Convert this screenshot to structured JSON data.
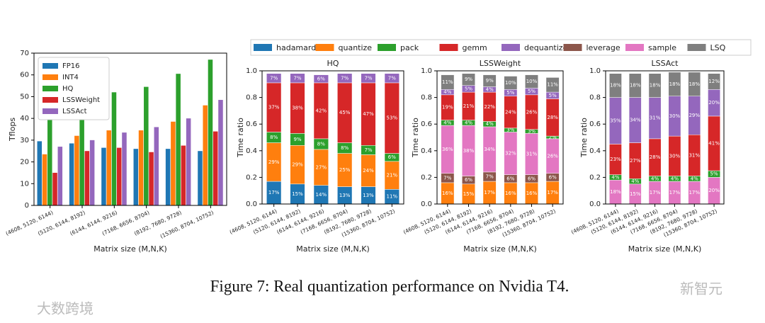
{
  "chart_data": [
    {
      "type": "bar",
      "ylabel": "Tflops",
      "xlabel": "Matrix size (M,N,K)",
      "categories": [
        "(4608, 5120, 6144)",
        "(5120, 6144, 8192)",
        "(6144, 6144, 9216)",
        "(7168, 6656, 8704)",
        "(8192, 7680, 9728)",
        "(15360, 8704, 10752)"
      ],
      "ylim": [
        0,
        70
      ],
      "yticks": [
        0,
        10,
        20,
        30,
        40,
        50,
        60,
        70
      ],
      "legend": "upper left",
      "series": [
        {
          "name": "FP16",
          "color": "#1f77b4",
          "values": [
            29.5,
            28.5,
            26.5,
            26,
            26,
            25
          ]
        },
        {
          "name": "INT4",
          "color": "#ff7f0e",
          "values": [
            23.5,
            32,
            34.5,
            34.5,
            38.5,
            46
          ]
        },
        {
          "name": "HQ",
          "color": "#2ca02c",
          "values": [
            43,
            49,
            52,
            54.5,
            60.5,
            67
          ]
        },
        {
          "name": "LSSWeight",
          "color": "#d62728",
          "values": [
            15,
            25,
            26.5,
            24.5,
            27.5,
            34
          ]
        },
        {
          "name": "LSSAct",
          "color": "#9467bd",
          "values": [
            27,
            30,
            33.5,
            36,
            40,
            48.5
          ]
        }
      ]
    },
    {
      "type": "stacked_bar",
      "title": "HQ",
      "ylabel": "Time ratio",
      "xlabel": "Matrix size (M,N,K)",
      "categories": [
        "(4608, 5120, 6144)",
        "(5120, 6144, 8192)",
        "(6144, 6144, 9216)",
        "(7168, 6656, 8704)",
        "(8192, 7680, 9728)",
        "(15360, 8704, 10752)"
      ],
      "ylim": [
        0,
        1
      ],
      "yticks": [
        {
          "value": 0,
          "label": "0.0"
        },
        0.2,
        0.4,
        0.6,
        0.8,
        {
          "value": 1,
          "label": "1.0"
        }
      ],
      "series": [
        {
          "name": "hadamard",
          "color": "#1f77b4",
          "values": [
            0.17,
            0.15,
            0.14,
            0.13,
            0.13,
            0.11
          ],
          "value_labels": [
            "17%",
            "15%",
            "14%",
            "13%",
            "13%",
            "11%"
          ]
        },
        {
          "name": "quantize",
          "color": "#ff7f0e",
          "values": [
            0.29,
            0.29,
            0.27,
            0.25,
            0.24,
            0.21
          ],
          "value_labels": [
            "29%",
            "29%",
            "27%",
            "25%",
            "24%",
            "21%"
          ]
        },
        {
          "name": "pack",
          "color": "#2ca02c",
          "values": [
            0.08,
            0.09,
            0.08,
            0.08,
            0.07,
            0.06
          ],
          "value_labels": [
            "8%",
            "9%",
            "8%",
            "8%",
            "7%",
            "6%"
          ]
        },
        {
          "name": "gemm",
          "color": "#d62728",
          "values": [
            0.37,
            0.38,
            0.42,
            0.45,
            0.47,
            0.53
          ],
          "value_labels": [
            "37%",
            "38%",
            "42%",
            "45%",
            "47%",
            "53%"
          ]
        },
        {
          "name": "dequantize",
          "color": "#9467bd",
          "values": [
            0.07,
            0.07,
            0.06,
            0.07,
            0.07,
            0.07
          ],
          "value_labels": [
            "7%",
            "7%",
            "6%",
            "7%",
            "7%",
            "7%"
          ]
        }
      ]
    },
    {
      "type": "stacked_bar",
      "title": "LSSWeight",
      "ylabel": "Time ratio",
      "xlabel": "Matrix size (M,N,K)",
      "categories": [
        "(4608, 5120, 6144)",
        "(5120, 6144, 8192)",
        "(6144, 6144, 9216)",
        "(7168, 6656, 8704)",
        "(8192, 7680, 9728)",
        "(15360, 8704, 10752)"
      ],
      "ylim": [
        0,
        1
      ],
      "yticks": [
        {
          "value": 0,
          "label": "0.0"
        },
        0.2,
        0.4,
        0.6,
        0.8,
        {
          "value": 1,
          "label": "1.0"
        }
      ],
      "series": [
        {
          "name": "quantize",
          "color": "#ff7f0e",
          "values": [
            0.16,
            0.15,
            0.17,
            0.16,
            0.16,
            0.17
          ],
          "value_labels": [
            "16%",
            "15%",
            "17%",
            "16%",
            "16%",
            "17%"
          ]
        },
        {
          "name": "leverage",
          "color": "#8c564b",
          "values": [
            0.07,
            0.06,
            0.07,
            0.06,
            0.06,
            0.06
          ],
          "value_labels": [
            "7%",
            "6%",
            "7%",
            "6%",
            "6%",
            "6%"
          ]
        },
        {
          "name": "sample",
          "color": "#e377c2",
          "values": [
            0.36,
            0.38,
            0.34,
            0.32,
            0.31,
            0.26
          ],
          "value_labels": [
            "36%",
            "38%",
            "34%",
            "32%",
            "31%",
            "26%"
          ]
        },
        {
          "name": "pack",
          "color": "#2ca02c",
          "values": [
            0.04,
            0.04,
            0.04,
            0.03,
            0.03,
            0.02
          ],
          "value_labels": [
            "4%",
            "4%",
            "4%",
            "3%",
            "3%",
            "2%"
          ]
        },
        {
          "name": "gemm",
          "color": "#d62728",
          "values": [
            0.19,
            0.21,
            0.22,
            0.24,
            0.26,
            0.28
          ],
          "value_labels": [
            "19%",
            "21%",
            "22%",
            "24%",
            "26%",
            "28%"
          ]
        },
        {
          "name": "dequantize",
          "color": "#9467bd",
          "values": [
            0.04,
            0.05,
            0.04,
            0.05,
            0.05,
            0.05
          ],
          "value_labels": [
            "4%",
            "5%",
            "4%",
            "5%",
            "5%",
            "5%"
          ]
        },
        {
          "name": "LSQ",
          "color": "#7f7f7f",
          "values": [
            0.11,
            0.09,
            0.09,
            0.1,
            0.1,
            0.11
          ],
          "value_labels": [
            "11%",
            "9%",
            "9%",
            "10%",
            "10%",
            "11%"
          ]
        }
      ]
    },
    {
      "type": "stacked_bar",
      "title": "LSSAct",
      "ylabel": "Time ratio",
      "xlabel": "Matrix size (M,N,K)",
      "categories": [
        "(4608, 5120, 6144)",
        "(5120, 6144, 8192)",
        "(6144, 6144, 9216)",
        "(7168, 6656, 8704)",
        "(8192, 7680, 9728)",
        "(15360, 8704, 10752)"
      ],
      "ylim": [
        0,
        1
      ],
      "yticks": [
        {
          "value": 0,
          "label": "0.0"
        },
        0.2,
        0.4,
        0.6,
        0.8,
        {
          "value": 1,
          "label": "1.0"
        }
      ],
      "series": [
        {
          "name": "sample",
          "color": "#e377c2",
          "values": [
            0.18,
            0.15,
            0.17,
            0.17,
            0.17,
            0.2
          ],
          "value_labels": [
            "18%",
            "15%",
            "17%",
            "17%",
            "17%",
            "20%"
          ]
        },
        {
          "name": "pack",
          "color": "#2ca02c",
          "values": [
            0.04,
            0.04,
            0.04,
            0.04,
            0.04,
            0.05
          ],
          "value_labels": [
            "4%",
            "4%",
            "4%",
            "4%",
            "4%",
            "5%"
          ]
        },
        {
          "name": "gemm",
          "color": "#d62728",
          "values": [
            0.23,
            0.27,
            0.28,
            0.3,
            0.31,
            0.41
          ],
          "value_labels": [
            "23%",
            "27%",
            "28%",
            "30%",
            "31%",
            "41%"
          ]
        },
        {
          "name": "dequantize",
          "color": "#9467bd",
          "values": [
            0.35,
            0.34,
            0.31,
            0.3,
            0.29,
            0.2
          ],
          "value_labels": [
            "35%",
            "34%",
            "31%",
            "30%",
            "29%",
            "20%"
          ]
        },
        {
          "name": "LSQ",
          "color": "#7f7f7f",
          "values": [
            0.18,
            0.18,
            0.18,
            0.18,
            0.18,
            0.12
          ],
          "value_labels": [
            "18%",
            "18%",
            "18%",
            "18%",
            "18%",
            "12%"
          ]
        }
      ]
    }
  ],
  "legend": {
    "entries": [
      {
        "name": "hadamard",
        "color": "#1f77b4"
      },
      {
        "name": "quantize",
        "color": "#ff7f0e"
      },
      {
        "name": "pack",
        "color": "#2ca02c"
      },
      {
        "name": "gemm",
        "color": "#d62728"
      },
      {
        "name": "dequantize",
        "color": "#9467bd"
      },
      {
        "name": "leverage",
        "color": "#8c564b"
      },
      {
        "name": "sample",
        "color": "#e377c2"
      },
      {
        "name": "LSQ",
        "color": "#7f7f7f"
      }
    ]
  },
  "caption": "Figure 7: Real quantization performance on Nvidia T4.",
  "watermarks": [
    "新智元",
    "大数跨境"
  ]
}
